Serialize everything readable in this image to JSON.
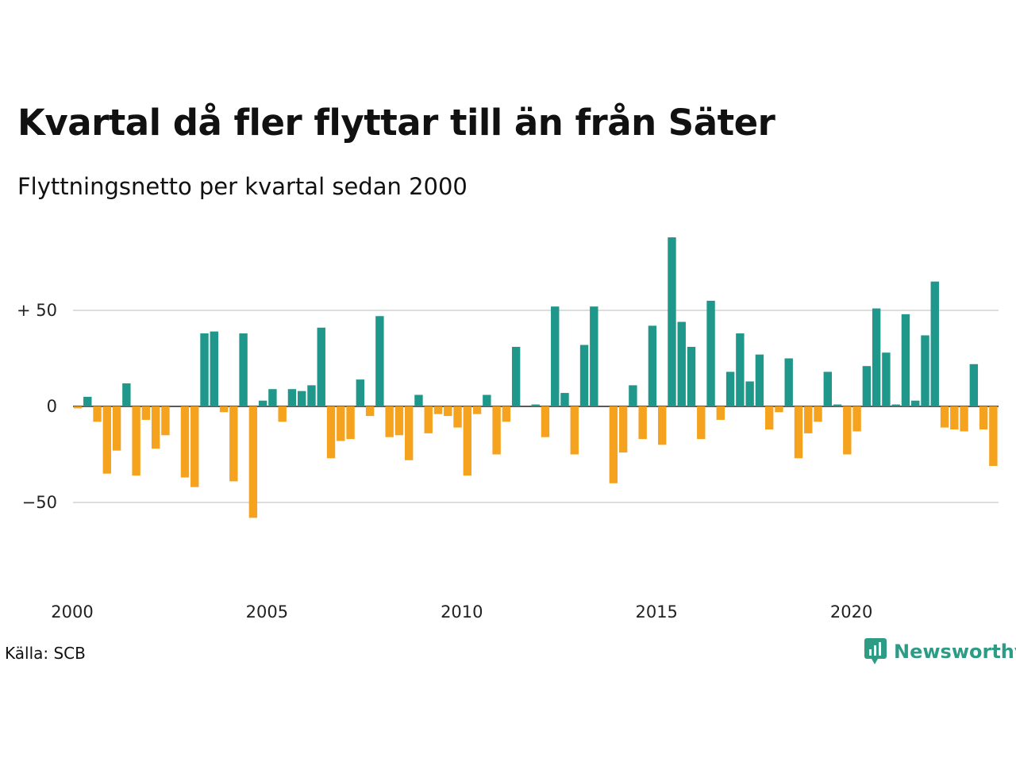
{
  "header": {
    "title": "Kvartal då fler flyttar till än från Säter",
    "subtitle": "Flyttningsnetto per kvartal sedan 2000"
  },
  "footer": {
    "source": "Källa: SCB",
    "brand": "Newsworthy",
    "brand_icon": "newsworthy-logo-icon"
  },
  "colors": {
    "positive": "#1f978a",
    "negative": "#f5a21e",
    "grid": "#dddddd",
    "brand": "#2e9b85"
  },
  "chart_data": {
    "type": "bar",
    "grid": true,
    "ylim": [
      -82,
      90
    ],
    "yticks": [
      50,
      0,
      -50
    ],
    "ytick_labels": [
      "+ 50",
      "0",
      "−50"
    ],
    "xtick_labels": [
      "2000",
      "2005",
      "2010",
      "2015",
      "2020"
    ],
    "x_start_year": 2000,
    "quarters_per_year": 4,
    "values": [
      -1,
      5,
      -8,
      -35,
      -23,
      12,
      -36,
      -7,
      -22,
      -15,
      0,
      -37,
      -42,
      38,
      39,
      -3,
      -39,
      38,
      -58,
      3,
      9,
      -8,
      9,
      8,
      11,
      41,
      -27,
      -18,
      -17,
      14,
      -5,
      47,
      -16,
      -15,
      -28,
      6,
      -14,
      -4,
      -5,
      -11,
      -36,
      -4,
      6,
      -25,
      -8,
      31,
      0,
      1,
      -16,
      52,
      7,
      -25,
      32,
      52,
      0,
      -40,
      -24,
      11,
      -17,
      42,
      -20,
      88,
      44,
      31,
      -17,
      55,
      -7,
      18,
      38,
      13,
      27,
      -12,
      -3,
      25,
      -27,
      -14,
      -8,
      18,
      1,
      -25,
      -13,
      21,
      51,
      28,
      1,
      48,
      3,
      37,
      65,
      -11,
      -12,
      -13,
      22,
      -12,
      -31
    ]
  }
}
